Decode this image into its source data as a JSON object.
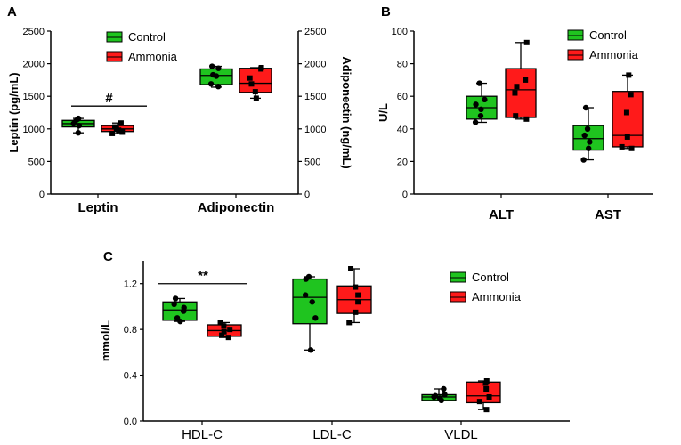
{
  "colors": {
    "control": "#1fc41f",
    "ammonia": "#ff1a1a",
    "axis": "#000000"
  },
  "chart_data": [
    {
      "panel": "A",
      "type": "box",
      "legend": [
        "Control",
        "Ammonia"
      ],
      "legend_position": "top-center",
      "left_axis": {
        "label": "Leptin (pg/mL)",
        "ylim": [
          0,
          2500
        ],
        "ticks": [
          0,
          500,
          1000,
          1500,
          2000,
          2500
        ]
      },
      "right_axis": {
        "label": "Adiponectin (ng/mL)",
        "ylim": [
          0,
          2500
        ],
        "ticks": [
          0,
          500,
          1000,
          1500,
          2000,
          2500
        ]
      },
      "categories": [
        "Leptin",
        "Adiponectin"
      ],
      "groups": [
        {
          "category": "Leptin",
          "axis": "left",
          "series": "Control",
          "min": 940,
          "q1": 1030,
          "median": 1080,
          "q3": 1130,
          "max": 1160,
          "points": [
            940,
            1050,
            1080,
            1110,
            1150,
            1160
          ]
        },
        {
          "category": "Leptin",
          "axis": "left",
          "series": "Ammonia",
          "min": 930,
          "q1": 960,
          "median": 1000,
          "q3": 1050,
          "max": 1090,
          "points": [
            930,
            950,
            980,
            1000,
            1030,
            1090
          ]
        },
        {
          "category": "Adiponectin",
          "axis": "right",
          "series": "Control",
          "min": 1640,
          "q1": 1680,
          "median": 1820,
          "q3": 1920,
          "max": 1960,
          "points": [
            1650,
            1690,
            1810,
            1830,
            1930,
            1960
          ]
        },
        {
          "category": "Adiponectin",
          "axis": "right",
          "series": "Ammonia",
          "min": 1470,
          "q1": 1560,
          "median": 1700,
          "q3": 1930,
          "max": 1940,
          "points": [
            1470,
            1570,
            1690,
            1780,
            1920,
            1940
          ]
        }
      ],
      "annotations": [
        {
          "text": "#",
          "span": "Leptin",
          "value": 1350
        }
      ]
    },
    {
      "panel": "B",
      "type": "box",
      "legend": [
        "Control",
        "Ammonia"
      ],
      "legend_position": "top-right",
      "left_axis": {
        "label": "U/L",
        "ylim": [
          0,
          100
        ],
        "ticks": [
          0,
          20,
          40,
          60,
          80,
          100
        ]
      },
      "categories": [
        "ALT",
        "AST"
      ],
      "groups": [
        {
          "category": "ALT",
          "series": "Control",
          "min": 44,
          "q1": 46,
          "median": 53,
          "q3": 60,
          "max": 68,
          "points": [
            44,
            48,
            52,
            55,
            58,
            68
          ]
        },
        {
          "category": "ALT",
          "series": "Ammonia",
          "min": 46,
          "q1": 47,
          "median": 64,
          "q3": 77,
          "max": 93,
          "points": [
            46,
            48,
            62,
            66,
            70,
            93
          ]
        },
        {
          "category": "AST",
          "series": "Control",
          "min": 21,
          "q1": 27,
          "median": 34,
          "q3": 42,
          "max": 53,
          "points": [
            21,
            28,
            32,
            36,
            40,
            53
          ]
        },
        {
          "category": "AST",
          "series": "Ammonia",
          "min": 28,
          "q1": 29,
          "median": 36,
          "q3": 63,
          "max": 73,
          "points": [
            28,
            29,
            35,
            50,
            61,
            73
          ]
        }
      ],
      "annotations": []
    },
    {
      "panel": "C",
      "type": "box",
      "legend": [
        "Control",
        "Ammonia"
      ],
      "legend_position": "top-right",
      "left_axis": {
        "label": "mmol/L",
        "ylim": [
          0,
          1.4
        ],
        "ticks": [
          0.0,
          0.4,
          0.8,
          1.2
        ],
        "tick_labels": [
          "0.0",
          "0.4",
          "0.8",
          "1.2"
        ]
      },
      "categories": [
        "HDL-C",
        "LDL-C",
        "VLDL"
      ],
      "groups": [
        {
          "category": "HDL-C",
          "series": "Control",
          "min": 0.87,
          "q1": 0.88,
          "median": 0.97,
          "q3": 1.04,
          "max": 1.07,
          "points": [
            0.87,
            0.9,
            0.96,
            0.99,
            1.02,
            1.07
          ]
        },
        {
          "category": "HDL-C",
          "series": "Ammonia",
          "min": 0.73,
          "q1": 0.74,
          "median": 0.79,
          "q3": 0.84,
          "max": 0.86,
          "points": [
            0.73,
            0.75,
            0.78,
            0.8,
            0.83,
            0.86
          ]
        },
        {
          "category": "LDL-C",
          "series": "Control",
          "min": 0.62,
          "q1": 0.85,
          "median": 1.08,
          "q3": 1.24,
          "max": 1.26,
          "points": [
            0.62,
            0.9,
            1.04,
            1.1,
            1.24,
            1.26
          ]
        },
        {
          "category": "LDL-C",
          "series": "Ammonia",
          "min": 0.86,
          "q1": 0.94,
          "median": 1.06,
          "q3": 1.18,
          "max": 1.33,
          "points": [
            0.86,
            0.95,
            1.04,
            1.1,
            1.17,
            1.33
          ]
        },
        {
          "category": "VLDL",
          "series": "Control",
          "min": 0.18,
          "q1": 0.18,
          "median": 0.21,
          "q3": 0.23,
          "max": 0.28,
          "points": [
            0.18,
            0.2,
            0.21,
            0.22,
            0.23,
            0.28
          ]
        },
        {
          "category": "VLDL",
          "series": "Ammonia",
          "min": 0.1,
          "q1": 0.16,
          "median": 0.22,
          "q3": 0.34,
          "max": 0.35,
          "points": [
            0.1,
            0.17,
            0.21,
            0.28,
            0.33,
            0.35
          ]
        }
      ],
      "annotations": [
        {
          "text": "**",
          "span": "HDL-C",
          "value": 1.2
        }
      ]
    }
  ]
}
